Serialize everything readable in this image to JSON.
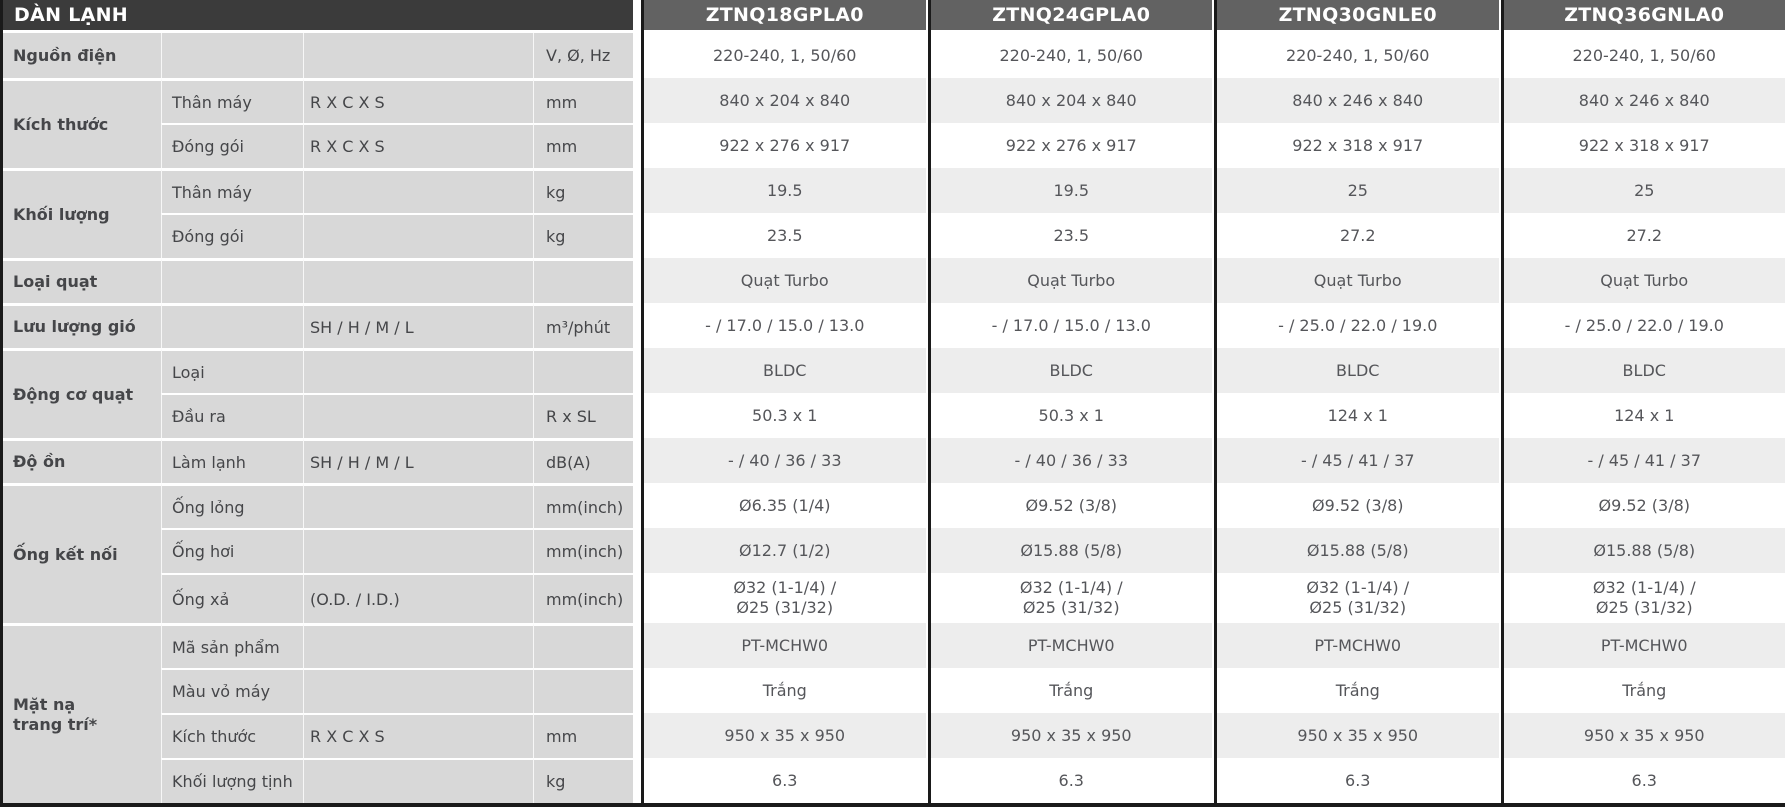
{
  "table": {
    "section_title": "DÀN LẠNH",
    "models": [
      "ZTNQ18GPLA0",
      "ZTNQ24GPLA0",
      "ZTNQ30GNLE0",
      "ZTNQ36GNLA0"
    ],
    "groups": [
      {
        "label": "Nguồn điện",
        "rows": [
          {
            "sublabel": "",
            "spec": "",
            "unit": "V, Ø, Hz",
            "values": [
              "220-240, 1, 50/60",
              "220-240, 1, 50/60",
              "220-240, 1, 50/60",
              "220-240, 1, 50/60"
            ]
          }
        ]
      },
      {
        "label": "Kích thước",
        "rows": [
          {
            "sublabel": "Thân máy",
            "spec": "R X C X S",
            "unit": "mm",
            "values": [
              "840 x 204 x 840",
              "840 x 204 x 840",
              "840 x 246 x 840",
              "840 x 246 x 840"
            ]
          },
          {
            "sublabel": "Đóng gói",
            "spec": "R X C X S",
            "unit": "mm",
            "values": [
              "922 x 276 x 917",
              "922 x 276 x 917",
              "922 x 318 x 917",
              "922 x 318 x 917"
            ]
          }
        ]
      },
      {
        "label": "Khối lượng",
        "rows": [
          {
            "sublabel": "Thân máy",
            "spec": "",
            "unit": "kg",
            "values": [
              "19.5",
              "19.5",
              "25",
              "25"
            ]
          },
          {
            "sublabel": "Đóng gói",
            "spec": "",
            "unit": "kg",
            "values": [
              "23.5",
              "23.5",
              "27.2",
              "27.2"
            ]
          }
        ]
      },
      {
        "label": "Loại quạt",
        "rows": [
          {
            "sublabel": "",
            "spec": "",
            "unit": "",
            "values": [
              "Quạt Turbo",
              "Quạt Turbo",
              "Quạt Turbo",
              "Quạt Turbo"
            ]
          }
        ]
      },
      {
        "label": "Lưu lượng gió",
        "rows": [
          {
            "sublabel": "",
            "spec": "SH / H / M / L",
            "unit": "m³/phút",
            "values": [
              "- / 17.0 / 15.0 / 13.0",
              "- / 17.0 / 15.0 / 13.0",
              "- / 25.0 / 22.0 / 19.0",
              "- / 25.0 / 22.0 / 19.0"
            ]
          }
        ]
      },
      {
        "label": "Động cơ quạt",
        "rows": [
          {
            "sublabel": "Loại",
            "spec": "",
            "unit": "",
            "values": [
              "BLDC",
              "BLDC",
              "BLDC",
              "BLDC"
            ]
          },
          {
            "sublabel": "Đầu ra",
            "spec": "",
            "unit": "R x SL",
            "values": [
              "50.3 x 1",
              "50.3 x 1",
              "124 x 1",
              "124 x 1"
            ]
          }
        ]
      },
      {
        "label": "Độ ồn",
        "rows": [
          {
            "sublabel": "Làm lạnh",
            "spec": "SH / H / M / L",
            "unit": "dB(A)",
            "values": [
              "- / 40 / 36 / 33",
              "- / 40 / 36 / 33",
              "- / 45 / 41 / 37",
              "- / 45 / 41 / 37"
            ]
          }
        ]
      },
      {
        "label": "Ống kết nối",
        "rows": [
          {
            "sublabel": "Ống lỏng",
            "spec": "",
            "unit": "mm(inch)",
            "values": [
              "Ø6.35 (1/4)",
              "Ø9.52 (3/8)",
              "Ø9.52 (3/8)",
              "Ø9.52 (3/8)"
            ]
          },
          {
            "sublabel": "Ống hơi",
            "spec": "",
            "unit": "mm(inch)",
            "values": [
              "Ø12.7 (1/2)",
              "Ø15.88 (5/8)",
              "Ø15.88 (5/8)",
              "Ø15.88 (5/8)"
            ]
          },
          {
            "sublabel": "Ống xả",
            "spec": "(O.D. / I.D.)",
            "unit": "mm(inch)",
            "tall": true,
            "values": [
              "Ø32 (1-1/4) /\nØ25 (31/32)",
              "Ø32 (1-1/4) /\nØ25 (31/32)",
              "Ø32 (1-1/4) /\nØ25 (31/32)",
              "Ø32 (1-1/4) /\nØ25 (31/32)"
            ]
          }
        ]
      },
      {
        "label": "Mặt nạ\ntrang trí*",
        "rows": [
          {
            "sublabel": "Mã sản phẩm",
            "spec": "",
            "unit": "",
            "values": [
              "PT-MCHW0",
              "PT-MCHW0",
              "PT-MCHW0",
              "PT-MCHW0"
            ]
          },
          {
            "sublabel": "Màu vỏ máy",
            "spec": "",
            "unit": "",
            "values": [
              "Trắng",
              "Trắng",
              "Trắng",
              "Trắng"
            ]
          },
          {
            "sublabel": "Kích thước",
            "spec": "R X C X S",
            "unit": "mm",
            "values": [
              "950 x 35 x 950",
              "950 x 35 x 950",
              "950 x 35 x 950",
              "950 x 35 x 950"
            ]
          },
          {
            "sublabel": "Khối lượng tịnh",
            "spec": "",
            "unit": "kg",
            "values": [
              "6.3",
              "6.3",
              "6.3",
              "6.3"
            ]
          }
        ]
      }
    ],
    "colors": {
      "section_header_bg": "#3b3b3b",
      "model_header_bg": "#626262",
      "left_panel_bg": "#d8d8d8",
      "alt_row_bg": "#ededed",
      "column_line": "#1a1a1a",
      "header_text": "#ffffff",
      "label_text": "#3d3e41",
      "value_text": "#55565a"
    }
  }
}
